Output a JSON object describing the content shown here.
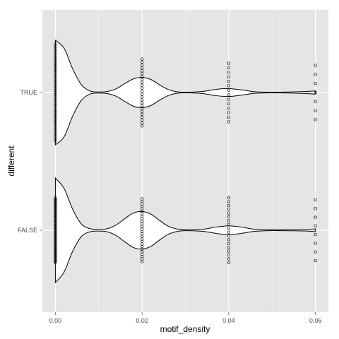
{
  "chart_data": {
    "type": "violin",
    "title": "",
    "xlabel": "motif_density",
    "ylabel": "different",
    "x_ticks": [
      "0.00",
      "0.02",
      "0.04",
      "0.06"
    ],
    "x_tick_values": [
      0.0,
      0.02,
      0.04,
      0.06
    ],
    "xlim": [
      -0.003,
      0.063
    ],
    "categories": [
      "FALSE",
      "TRUE"
    ],
    "grid": true,
    "legend": "none",
    "colors": {
      "panel": "#e5e5e5",
      "grid_major": "#ffffff",
      "grid_minor": "#f2f2f2",
      "violin_fill": "#ffffff",
      "violin_stroke": "#000000",
      "point": "#000000"
    },
    "series": [
      {
        "category": "TRUE",
        "density_halfwidth": [
          {
            "x": 0.0,
            "w": 1.0
          },
          {
            "x": 0.002,
            "w": 0.85
          },
          {
            "x": 0.004,
            "w": 0.45
          },
          {
            "x": 0.006,
            "w": 0.15
          },
          {
            "x": 0.008,
            "w": 0.03
          },
          {
            "x": 0.01,
            "w": 0.01
          },
          {
            "x": 0.012,
            "w": 0.02
          },
          {
            "x": 0.014,
            "w": 0.07
          },
          {
            "x": 0.016,
            "w": 0.17
          },
          {
            "x": 0.018,
            "w": 0.26
          },
          {
            "x": 0.02,
            "w": 0.29
          },
          {
            "x": 0.022,
            "w": 0.25
          },
          {
            "x": 0.024,
            "w": 0.15
          },
          {
            "x": 0.026,
            "w": 0.06
          },
          {
            "x": 0.028,
            "w": 0.015
          },
          {
            "x": 0.03,
            "w": 0.005
          },
          {
            "x": 0.034,
            "w": 0.02
          },
          {
            "x": 0.037,
            "w": 0.06
          },
          {
            "x": 0.04,
            "w": 0.075
          },
          {
            "x": 0.043,
            "w": 0.05
          },
          {
            "x": 0.046,
            "w": 0.015
          },
          {
            "x": 0.05,
            "w": 0.006
          },
          {
            "x": 0.054,
            "w": 0.01
          },
          {
            "x": 0.058,
            "w": 0.02
          },
          {
            "x": 0.06,
            "w": 0.03
          }
        ],
        "points": [
          {
            "x": 0.0,
            "spread": 0.93,
            "n": 45
          },
          {
            "x": 0.02,
            "spread": 0.64,
            "n": 24
          },
          {
            "x": 0.04,
            "spread": 0.56,
            "n": 14
          },
          {
            "x": 0.06,
            "spread": 0.52,
            "n": 7
          }
        ]
      },
      {
        "category": "FALSE",
        "density_halfwidth": [
          {
            "x": 0.0,
            "w": 1.0
          },
          {
            "x": 0.002,
            "w": 0.8
          },
          {
            "x": 0.004,
            "w": 0.4
          },
          {
            "x": 0.006,
            "w": 0.12
          },
          {
            "x": 0.008,
            "w": 0.03
          },
          {
            "x": 0.01,
            "w": 0.015
          },
          {
            "x": 0.012,
            "w": 0.03
          },
          {
            "x": 0.014,
            "w": 0.1
          },
          {
            "x": 0.016,
            "w": 0.22
          },
          {
            "x": 0.018,
            "w": 0.33
          },
          {
            "x": 0.02,
            "w": 0.36
          },
          {
            "x": 0.022,
            "w": 0.31
          },
          {
            "x": 0.024,
            "w": 0.19
          },
          {
            "x": 0.026,
            "w": 0.08
          },
          {
            "x": 0.028,
            "w": 0.025
          },
          {
            "x": 0.03,
            "w": 0.008
          },
          {
            "x": 0.034,
            "w": 0.02
          },
          {
            "x": 0.037,
            "w": 0.06
          },
          {
            "x": 0.04,
            "w": 0.085
          },
          {
            "x": 0.043,
            "w": 0.06
          },
          {
            "x": 0.046,
            "w": 0.02
          },
          {
            "x": 0.05,
            "w": 0.007
          },
          {
            "x": 0.054,
            "w": 0.01
          },
          {
            "x": 0.058,
            "w": 0.015
          },
          {
            "x": 0.06,
            "w": 0.025
          }
        ],
        "points": [
          {
            "x": 0.0,
            "spread": 0.62,
            "n": 50
          },
          {
            "x": 0.02,
            "spread": 0.6,
            "n": 26
          },
          {
            "x": 0.04,
            "spread": 0.62,
            "n": 18
          },
          {
            "x": 0.06,
            "spread": 0.58,
            "n": 8
          }
        ]
      }
    ]
  }
}
